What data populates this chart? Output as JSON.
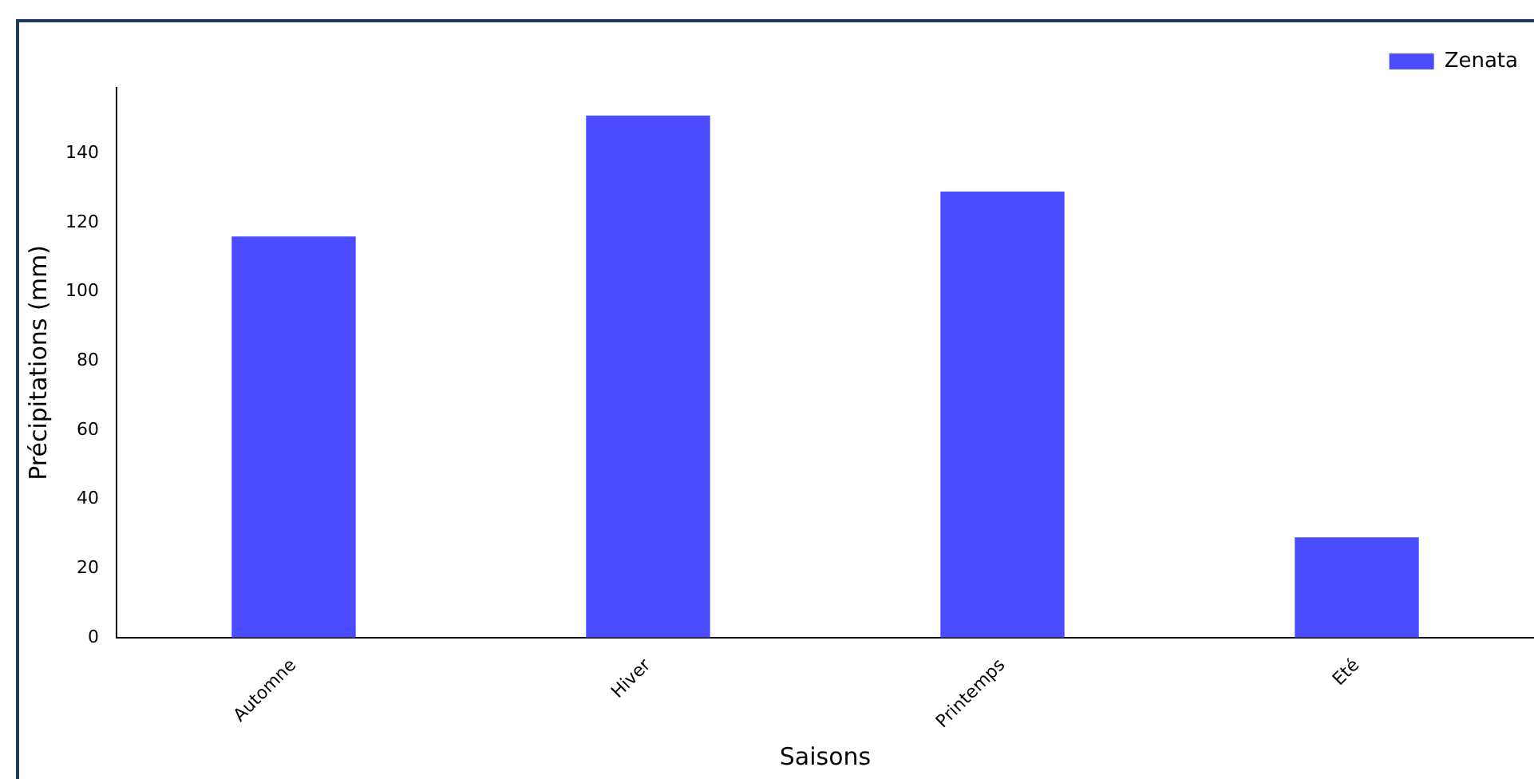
{
  "chart_data": {
    "type": "bar",
    "xlabel": "Saisons",
    "ylabel": "Précipitations (mm)",
    "categories": [
      "Automne",
      "Hiver",
      "Printemps",
      "Eté"
    ],
    "series": [
      {
        "name": "Zenata",
        "color": "#4b4bff",
        "values": [
          116,
          151,
          129,
          29
        ]
      }
    ],
    "ylim": [
      0,
      159
    ],
    "yticks": [
      0,
      20,
      40,
      60,
      80,
      100,
      120,
      140
    ],
    "grid": false,
    "legend": "top right"
  }
}
